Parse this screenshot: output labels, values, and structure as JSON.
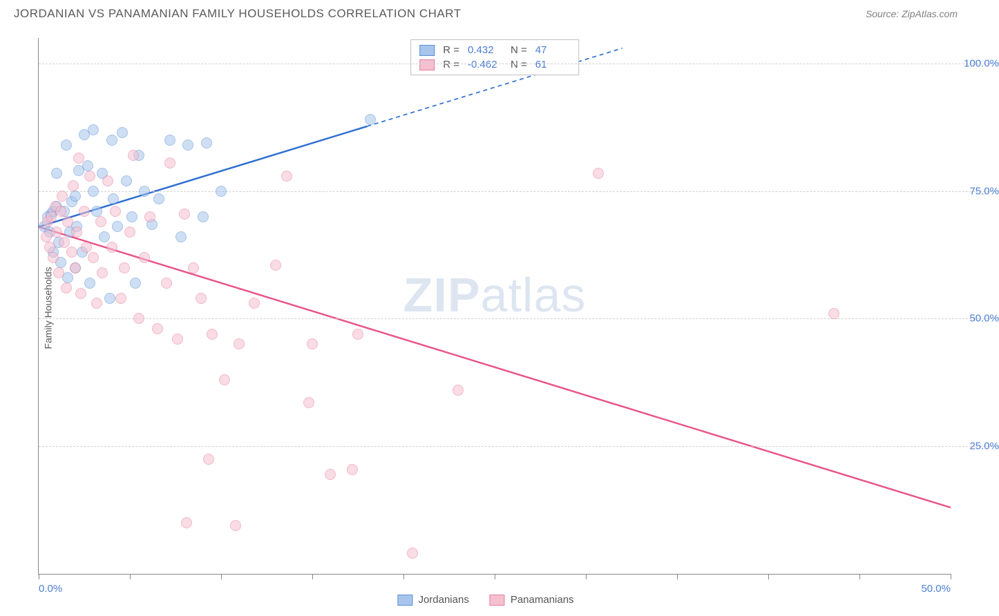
{
  "header": {
    "title": "JORDANIAN VS PANAMANIAN FAMILY HOUSEHOLDS CORRELATION CHART",
    "source": "Source: ZipAtlas.com"
  },
  "chart": {
    "type": "scatter",
    "ylabel": "Family Households",
    "xlim": [
      0,
      50
    ],
    "ylim": [
      0,
      105
    ],
    "x_ticks": [
      0,
      5,
      10,
      15,
      20,
      25,
      30,
      35,
      40,
      45,
      50
    ],
    "x_tick_labels_visible": {
      "0": "0.0%",
      "50": "50.0%"
    },
    "y_ticks": [
      25,
      50,
      75,
      100
    ],
    "y_tick_labels": {
      "25": "25.0%",
      "50": "50.0%",
      "75": "75.0%",
      "100": "100.0%"
    },
    "background_color": "#ffffff",
    "grid_color": "#d0d0d0",
    "axis_color": "#888888",
    "label_fontsize": 14,
    "tick_fontsize": 15,
    "tick_color": "#4a7dd4",
    "marker_radius": 8,
    "marker_opacity": 0.55,
    "watermark": {
      "text_bold": "ZIP",
      "text_rest": "atlas",
      "color": "rgba(120,150,200,0.25)",
      "fontsize": 70
    },
    "series": [
      {
        "name": "Jordanians",
        "fill_color": "#a7c5ec",
        "stroke_color": "#5b8fd6",
        "line_color": "#2e6fd1",
        "line_width": 2.5,
        "line_dash_from_x": 18,
        "R": "0.432",
        "N": "47",
        "trend": {
          "x1": 0,
          "y1": 68,
          "x2": 32,
          "y2": 103
        },
        "points": [
          [
            0.3,
            68
          ],
          [
            0.5,
            70
          ],
          [
            0.6,
            67
          ],
          [
            0.7,
            70.5
          ],
          [
            0.8,
            63
          ],
          [
            0.8,
            71
          ],
          [
            1.0,
            72
          ],
          [
            1.0,
            78.5
          ],
          [
            1.1,
            65
          ],
          [
            1.2,
            61
          ],
          [
            1.4,
            71
          ],
          [
            1.5,
            84
          ],
          [
            1.6,
            58
          ],
          [
            1.7,
            67
          ],
          [
            1.8,
            73
          ],
          [
            2.0,
            74
          ],
          [
            2.0,
            60
          ],
          [
            2.1,
            68
          ],
          [
            2.2,
            79
          ],
          [
            2.4,
            63
          ],
          [
            2.5,
            86
          ],
          [
            2.7,
            80
          ],
          [
            2.8,
            57
          ],
          [
            3.0,
            75
          ],
          [
            3.0,
            87
          ],
          [
            3.2,
            71
          ],
          [
            3.5,
            78.5
          ],
          [
            3.6,
            66
          ],
          [
            3.9,
            54
          ],
          [
            4.0,
            85
          ],
          [
            4.1,
            73.5
          ],
          [
            4.3,
            68
          ],
          [
            4.6,
            86.5
          ],
          [
            4.8,
            77
          ],
          [
            5.1,
            70
          ],
          [
            5.3,
            57
          ],
          [
            5.5,
            82
          ],
          [
            5.8,
            75
          ],
          [
            6.2,
            68.5
          ],
          [
            6.6,
            73.5
          ],
          [
            7.2,
            85
          ],
          [
            7.8,
            66
          ],
          [
            8.2,
            84
          ],
          [
            9.0,
            70
          ],
          [
            9.2,
            84.5
          ],
          [
            10.0,
            75
          ],
          [
            18.2,
            89
          ]
        ]
      },
      {
        "name": "Panamanians",
        "fill_color": "#f5c0cf",
        "stroke_color": "#e77da0",
        "line_color": "#e8558a",
        "line_width": 2.5,
        "R": "-0.462",
        "N": "61",
        "trend": {
          "x1": 0,
          "y1": 68,
          "x2": 50,
          "y2": 13
        },
        "points": [
          [
            0.4,
            66
          ],
          [
            0.5,
            69
          ],
          [
            0.6,
            64
          ],
          [
            0.7,
            70
          ],
          [
            0.8,
            62
          ],
          [
            0.9,
            72
          ],
          [
            1.0,
            67
          ],
          [
            1.1,
            59
          ],
          [
            1.2,
            71
          ],
          [
            1.3,
            74
          ],
          [
            1.4,
            65
          ],
          [
            1.5,
            56
          ],
          [
            1.6,
            69
          ],
          [
            1.8,
            63
          ],
          [
            1.9,
            76
          ],
          [
            2.0,
            60
          ],
          [
            2.1,
            67
          ],
          [
            2.2,
            81.5
          ],
          [
            2.3,
            55
          ],
          [
            2.5,
            71
          ],
          [
            2.6,
            64
          ],
          [
            2.8,
            78
          ],
          [
            3.0,
            62
          ],
          [
            3.2,
            53
          ],
          [
            3.4,
            69
          ],
          [
            3.5,
            59
          ],
          [
            3.8,
            77
          ],
          [
            4.0,
            64
          ],
          [
            4.2,
            71
          ],
          [
            4.5,
            54
          ],
          [
            4.7,
            60
          ],
          [
            5.0,
            67
          ],
          [
            5.2,
            82
          ],
          [
            5.5,
            50
          ],
          [
            5.8,
            62
          ],
          [
            6.1,
            70
          ],
          [
            6.5,
            48
          ],
          [
            7.0,
            57
          ],
          [
            7.2,
            80.5
          ],
          [
            7.6,
            46
          ],
          [
            8.0,
            70.5
          ],
          [
            8.5,
            60
          ],
          [
            8.9,
            54
          ],
          [
            9.3,
            22.5
          ],
          [
            9.5,
            47
          ],
          [
            10.2,
            38
          ],
          [
            10.8,
            9.5
          ],
          [
            11.0,
            45
          ],
          [
            11.8,
            53
          ],
          [
            13.0,
            60.5
          ],
          [
            13.6,
            78
          ],
          [
            14.8,
            33.5
          ],
          [
            15.0,
            45
          ],
          [
            16.0,
            19.5
          ],
          [
            17.2,
            20.5
          ],
          [
            17.5,
            47
          ],
          [
            20.5,
            4
          ],
          [
            23.0,
            36
          ],
          [
            30.7,
            78.5
          ],
          [
            43.6,
            51
          ],
          [
            8.1,
            10
          ]
        ]
      }
    ],
    "legend_bottom": [
      {
        "label": "Jordanians",
        "fill": "#a7c5ec",
        "stroke": "#5b8fd6"
      },
      {
        "label": "Panamanians",
        "fill": "#f5c0cf",
        "stroke": "#e77da0"
      }
    ]
  }
}
